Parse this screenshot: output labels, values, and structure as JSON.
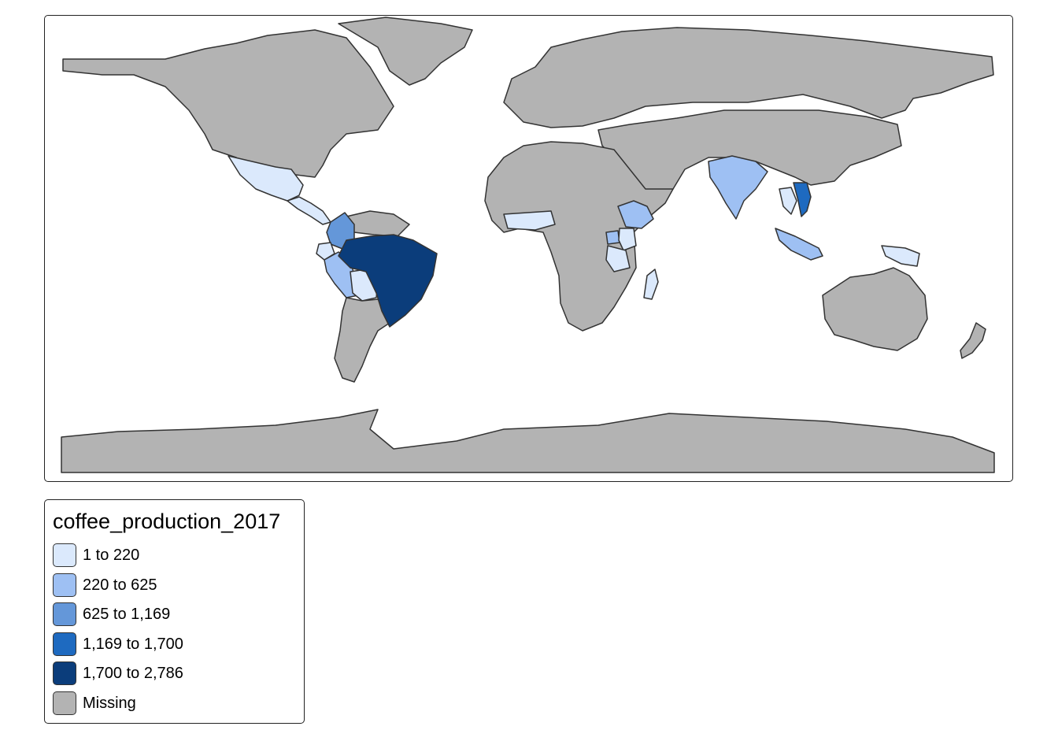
{
  "legend": {
    "title": "coffee_production_2017",
    "classes": [
      {
        "label": "1 to 220",
        "color": "#DBE9FC"
      },
      {
        "label": "220 to 625",
        "color": "#9EC0F3"
      },
      {
        "label": "625 to 1,169",
        "color": "#6497D9"
      },
      {
        "label": "1,169 to 1,700",
        "color": "#1E6AC0"
      },
      {
        "label": "1,700 to 2,786",
        "color": "#0B3D7B"
      },
      {
        "label": "Missing",
        "color": "#B3B3B3"
      }
    ]
  },
  "colors": {
    "missing": "#B3B3B3",
    "border": "#333333",
    "frame": "#222222"
  },
  "regions": [
    {
      "name": "North America",
      "class": "Missing"
    },
    {
      "name": "Greenland",
      "class": "Missing"
    },
    {
      "name": "Mexico",
      "class": "1 to 220"
    },
    {
      "name": "Central America",
      "class": "1 to 220"
    },
    {
      "name": "Colombia",
      "class": "625 to 1,169"
    },
    {
      "name": "Brazil",
      "class": "1,700 to 2,786"
    },
    {
      "name": "Peru",
      "class": "220 to 625"
    },
    {
      "name": "Ecuador",
      "class": "1 to 220"
    },
    {
      "name": "Bolivia",
      "class": "1 to 220"
    },
    {
      "name": "Venezuela",
      "class": "Missing"
    },
    {
      "name": "Southern South America",
      "class": "Missing"
    },
    {
      "name": "Europe and Russia",
      "class": "Missing"
    },
    {
      "name": "Africa",
      "class": "Missing"
    },
    {
      "name": "Ethiopia",
      "class": "220 to 625"
    },
    {
      "name": "Uganda",
      "class": "220 to 625"
    },
    {
      "name": "Kenya",
      "class": "1 to 220"
    },
    {
      "name": "Tanzania",
      "class": "1 to 220"
    },
    {
      "name": "West Africa coffee",
      "class": "1 to 220"
    },
    {
      "name": "Madagascar",
      "class": "1 to 220"
    },
    {
      "name": "Middle East and Asia",
      "class": "Missing"
    },
    {
      "name": "India",
      "class": "220 to 625"
    },
    {
      "name": "Vietnam",
      "class": "1,169 to 1,700"
    },
    {
      "name": "Laos and Thailand",
      "class": "1 to 220"
    },
    {
      "name": "Indonesia",
      "class": "220 to 625"
    },
    {
      "name": "Papua New Guinea",
      "class": "1 to 220"
    },
    {
      "name": "Australia",
      "class": "Missing"
    },
    {
      "name": "New Zealand",
      "class": "Missing"
    },
    {
      "name": "Antarctica",
      "class": "Missing"
    }
  ]
}
